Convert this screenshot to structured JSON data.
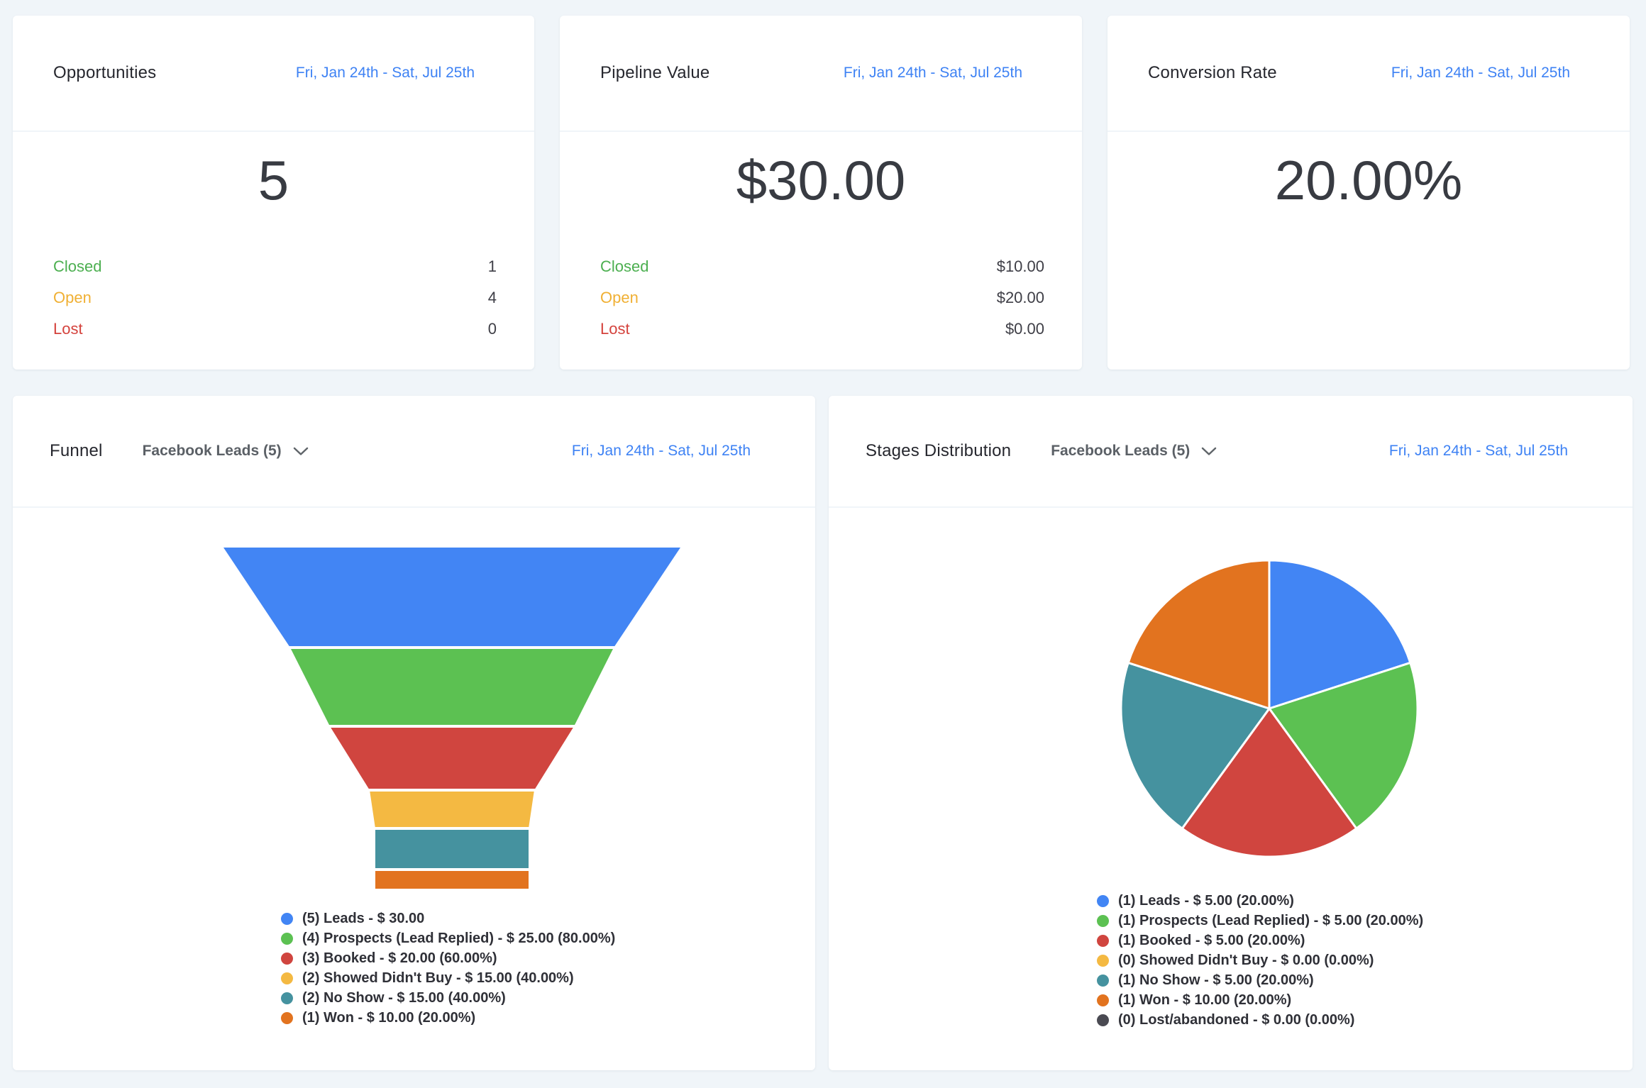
{
  "date_range": "Fri, Jan 24th - Sat, Jul 25th",
  "cards": {
    "opportunities": {
      "title": "Opportunities",
      "value": "5",
      "rows": [
        {
          "label": "Closed",
          "value": "1",
          "color": "#4CAF50"
        },
        {
          "label": "Open",
          "value": "4",
          "color": "#F0B034"
        },
        {
          "label": "Lost",
          "value": "0",
          "color": "#D4423C"
        }
      ]
    },
    "pipeline_value": {
      "title": "Pipeline Value",
      "value": "$30.00",
      "rows": [
        {
          "label": "Closed",
          "value": "$10.00",
          "color": "#4CAF50"
        },
        {
          "label": "Open",
          "value": "$20.00",
          "color": "#F0B034"
        },
        {
          "label": "Lost",
          "value": "$0.00",
          "color": "#D4423C"
        }
      ]
    },
    "conversion_rate": {
      "title": "Conversion Rate",
      "value": "20.00%"
    },
    "funnel": {
      "title": "Funnel",
      "filter_label": "Facebook Leads (5)"
    },
    "stages": {
      "title": "Stages Distribution",
      "filter_label": "Facebook Leads (5)"
    }
  },
  "chart_data": [
    {
      "type": "funnel",
      "title": "Funnel",
      "segments": [
        {
          "label": "Leads",
          "count": 5,
          "value_usd": 30.0,
          "percent": 100.0,
          "legend": "(5) Leads - $ 30.00",
          "color": "#4285F4"
        },
        {
          "label": "Prospects (Lead Replied)",
          "count": 4,
          "value_usd": 25.0,
          "percent": 80.0,
          "legend": "(4) Prospects (Lead Replied) - $ 25.00 (80.00%)",
          "color": "#5CC152"
        },
        {
          "label": "Booked",
          "count": 3,
          "value_usd": 20.0,
          "percent": 60.0,
          "legend": "(3) Booked - $ 20.00 (60.00%)",
          "color": "#D0453F"
        },
        {
          "label": "Showed Didn't Buy",
          "count": 2,
          "value_usd": 15.0,
          "percent": 40.0,
          "legend": "(2) Showed Didn't Buy - $ 15.00 (40.00%)",
          "color": "#F4B942"
        },
        {
          "label": "No Show",
          "count": 2,
          "value_usd": 15.0,
          "percent": 40.0,
          "legend": "(2) No Show - $ 15.00 (40.00%)",
          "color": "#45929F"
        },
        {
          "label": "Won",
          "count": 1,
          "value_usd": 10.0,
          "percent": 20.0,
          "legend": "(1) Won - $ 10.00 (20.00%)",
          "color": "#E2731F"
        }
      ]
    },
    {
      "type": "pie",
      "title": "Stages Distribution",
      "slices": [
        {
          "label": "Leads",
          "count": 1,
          "value_usd": 5.0,
          "percent": 20.0,
          "legend": "(1) Leads - $ 5.00 (20.00%)",
          "color": "#4285F4"
        },
        {
          "label": "Prospects (Lead Replied)",
          "count": 1,
          "value_usd": 5.0,
          "percent": 20.0,
          "legend": "(1) Prospects (Lead Replied) - $ 5.00 (20.00%)",
          "color": "#5CC152"
        },
        {
          "label": "Booked",
          "count": 1,
          "value_usd": 5.0,
          "percent": 20.0,
          "legend": "(1) Booked - $ 5.00 (20.00%)",
          "color": "#D0453F"
        },
        {
          "label": "Showed Didn't Buy",
          "count": 0,
          "value_usd": 0.0,
          "percent": 0.0,
          "legend": "(0) Showed Didn't Buy - $ 0.00 (0.00%)",
          "color": "#F4B942"
        },
        {
          "label": "No Show",
          "count": 1,
          "value_usd": 5.0,
          "percent": 20.0,
          "legend": "(1) No Show - $ 5.00 (20.00%)",
          "color": "#45929F"
        },
        {
          "label": "Won",
          "count": 1,
          "value_usd": 10.0,
          "percent": 20.0,
          "legend": "(1) Won - $ 10.00 (20.00%)",
          "color": "#E2731F"
        },
        {
          "label": "Lost/abandoned",
          "count": 0,
          "value_usd": 0.0,
          "percent": 0.0,
          "legend": "(0) Lost/abandoned - $ 0.00 (0.00%)",
          "color": "#4A4A52"
        }
      ]
    }
  ]
}
